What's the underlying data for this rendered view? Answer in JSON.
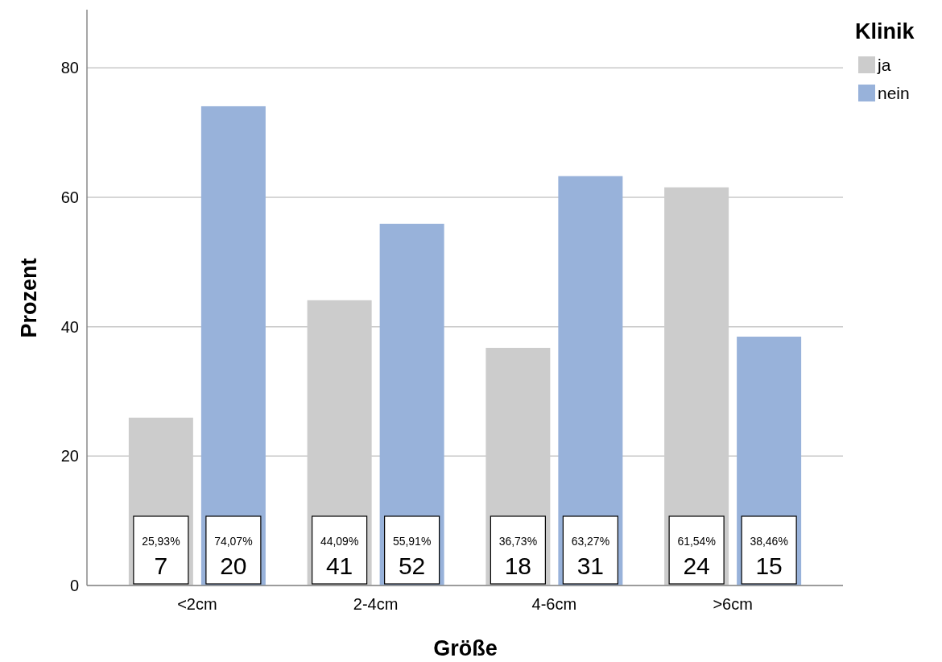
{
  "chart_data": {
    "type": "bar",
    "xlabel": "Größe",
    "ylabel": "Prozent",
    "legend_title": "Klinik",
    "legend": "top right",
    "grid": "y",
    "categories": [
      "<2cm",
      "2-4cm",
      "4-6cm",
      ">6cm"
    ],
    "ylim": [
      0,
      89
    ],
    "yticks": [
      0,
      20,
      40,
      60,
      80
    ],
    "series": [
      {
        "name": "ja",
        "color": "#cccccc",
        "values": [
          25.93,
          44.09,
          36.73,
          61.54
        ],
        "value_labels": [
          "25,93%\n7",
          "44,09%\n41",
          "36,73%\n18",
          "61,54%\n24"
        ]
      },
      {
        "name": "nein",
        "color": "#98b2da",
        "values": [
          74.07,
          55.91,
          63.27,
          38.46
        ],
        "value_labels": [
          "74,07%\n20",
          "55,91%\n52",
          "63,27%\n31",
          "38,46%\n15"
        ]
      }
    ]
  }
}
